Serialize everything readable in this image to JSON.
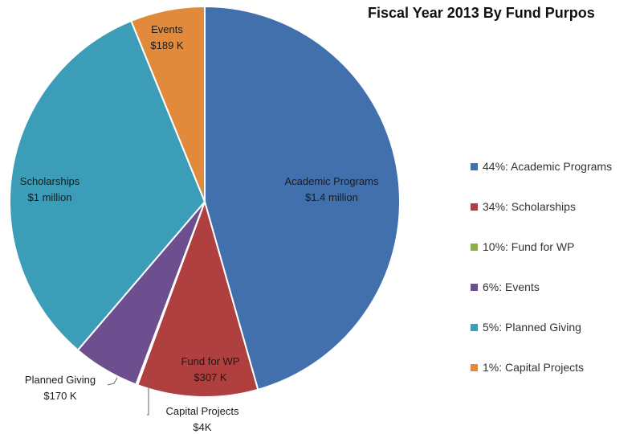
{
  "chart_data": {
    "type": "pie",
    "title": "Fiscal Year 2013 By Fund Purpos",
    "slices": [
      {
        "label": "Academic Programs",
        "amount": "$1.4 million",
        "value": 1.4,
        "color": "#4270ad"
      },
      {
        "label": "Fund for WP",
        "amount": "$307 K",
        "value": 0.307,
        "color": "#b0403f"
      },
      {
        "label": "Capital Projects",
        "amount": "$4K",
        "value": 0.004,
        "color": "#8fad46"
      },
      {
        "label": "Planned Giving",
        "amount": "$170 K",
        "value": 0.17,
        "color": "#6d4e8f"
      },
      {
        "label": "Scholarships",
        "amount": "$1 million",
        "value": 1.0,
        "color": "#3b9db7"
      },
      {
        "label": "Events",
        "amount": "$189 K",
        "value": 0.189,
        "color": "#e18a3b"
      }
    ],
    "legend": {
      "placement": "right",
      "entries": [
        {
          "text": "44%: Academic Programs",
          "color": "#4270ad"
        },
        {
          "text": "34%: Scholarships",
          "color": "#b0403f"
        },
        {
          "text": "10%: Fund for WP",
          "color": "#8fad46"
        },
        {
          "text": "6%: Events",
          "color": "#6d4e8f"
        },
        {
          "text": "5%: Planned Giving",
          "color": "#3b9db7"
        },
        {
          "text": "1%: Capital Projects",
          "color": "#e18a3b"
        }
      ]
    }
  }
}
